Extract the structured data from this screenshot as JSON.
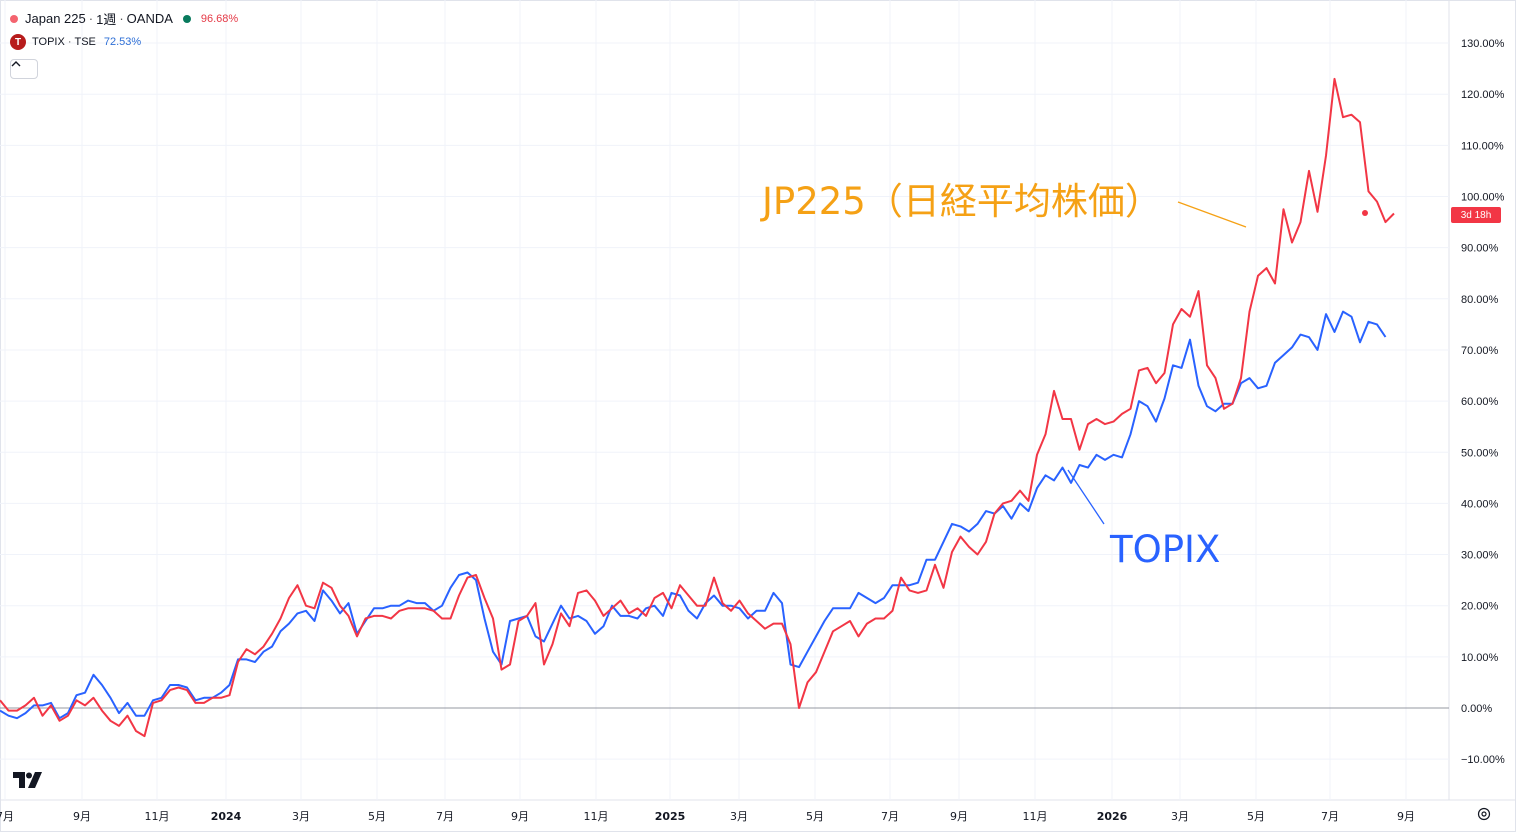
{
  "legend": {
    "main": {
      "title": "Japan 225",
      "interval": "1週",
      "source": "OANDA",
      "value": "96.68%"
    },
    "compare": {
      "symbol": "TOPIX",
      "exchange": "TSE",
      "value": "72.53%",
      "badge": "T"
    }
  },
  "separator": "·",
  "last_tag": "3d 18h",
  "annotations": {
    "jp225": "JP225（日経平均株価）",
    "topix": "TOPIX"
  },
  "icons": {
    "collapse": "chevron-up-icon",
    "logo": "tradingview-logo-icon",
    "settings": "gear-icon"
  },
  "colors": {
    "jp225": "#f23645",
    "topix": "#2962ff",
    "annotation_jp": "#f5a115"
  },
  "chart_data": {
    "type": "line",
    "y_unit": "%",
    "ylim": [
      -12,
      130
    ],
    "y_ticks": [
      130,
      120,
      110,
      100,
      90,
      80,
      70,
      60,
      50,
      40,
      30,
      20,
      10,
      0,
      -10
    ],
    "y_tick_labels": [
      "130.00%",
      "120.00%",
      "110.00%",
      "100.00%",
      "90.00%",
      "80.00%",
      "70.00%",
      "60.00%",
      "50.00%",
      "40.00%",
      "30.00%",
      "20.00%",
      "10.00%",
      "0.00%",
      "−10.00%"
    ],
    "x_labels": [
      "7月",
      "9月",
      "11月",
      "2024",
      "3月",
      "5月",
      "7月",
      "9月",
      "11月",
      "2025",
      "3月",
      "5月",
      "7月",
      "9月",
      "11月",
      "2026",
      "3月",
      "5月",
      "7月",
      "9月"
    ],
    "x_label_bold": [
      "2024",
      "2025",
      "2026"
    ],
    "grid": true,
    "series": [
      {
        "name": "Japan 225",
        "color": "#f23645",
        "values": [
          1.5,
          -0.5,
          -0.5,
          0.5,
          2.0,
          -1.5,
          0.5,
          -2.5,
          -1.5,
          1.5,
          0.5,
          2.0,
          -0.5,
          -2.5,
          -3.5,
          -1.5,
          -4.5,
          -5.5,
          1.0,
          1.5,
          3.5,
          4.0,
          3.5,
          1.0,
          1.0,
          2.0,
          2.0,
          2.5,
          9.0,
          11.5,
          10.5,
          12.0,
          14.5,
          17.5,
          21.5,
          24.0,
          20.0,
          19.5,
          24.5,
          23.5,
          20.0,
          18.0,
          14.0,
          17.5,
          18.0,
          18.0,
          17.5,
          19.0,
          19.5,
          19.5,
          19.5,
          19.0,
          17.5,
          17.5,
          22.0,
          25.5,
          26.0,
          21.5,
          17.5,
          7.5,
          8.5,
          17.0,
          18.0,
          20.5,
          8.5,
          12.5,
          18.5,
          16.0,
          22.5,
          23.0,
          21.0,
          18.0,
          19.5,
          21.0,
          18.5,
          19.5,
          18.0,
          21.5,
          22.5,
          19.5,
          24.0,
          22.0,
          20.0,
          20.0,
          25.5,
          20.5,
          19.0,
          21.0,
          18.5,
          17.0,
          15.5,
          16.5,
          16.5,
          12.5,
          0.0,
          5.0,
          7.0,
          11.0,
          15.0,
          16.0,
          17.0,
          14.0,
          16.5,
          17.5,
          17.5,
          19.0,
          25.5,
          23.0,
          22.5,
          23.0,
          28.0,
          23.5,
          30.5,
          33.5,
          31.5,
          30.0,
          32.5,
          38.0,
          40.0,
          40.5,
          42.5,
          40.5,
          49.5,
          53.5,
          62.0,
          56.5,
          56.5,
          50.5,
          55.5,
          56.5,
          55.5,
          56.0,
          57.5,
          58.5,
          66.0,
          66.5,
          63.5,
          65.5,
          75.0,
          78.0,
          76.5,
          81.5,
          67.0,
          64.5,
          58.5,
          59.5,
          64.5,
          77.5,
          84.5,
          86.0,
          83.0,
          97.5,
          91.0,
          95.0,
          105.0,
          97.0,
          108.0,
          123.0,
          115.5,
          116.0,
          114.5,
          101.0,
          99.0,
          95.0,
          96.68
        ]
      },
      {
        "name": "TOPIX",
        "color": "#2962ff",
        "values": [
          -0.5,
          -1.5,
          -2.0,
          -1.0,
          0.5,
          0.5,
          1.0,
          -2.0,
          -1.0,
          2.5,
          3.0,
          6.5,
          4.5,
          2.0,
          -1.0,
          1.0,
          -1.5,
          -1.5,
          1.5,
          2.0,
          4.5,
          4.5,
          4.0,
          1.5,
          2.0,
          2.0,
          3.0,
          4.5,
          9.5,
          9.5,
          9.0,
          11.0,
          12.0,
          15.0,
          16.5,
          18.5,
          19.0,
          17.0,
          23.0,
          21.0,
          18.5,
          20.5,
          14.5,
          17.0,
          19.5,
          19.5,
          20.0,
          20.0,
          21.0,
          20.5,
          20.5,
          19.0,
          20.0,
          23.5,
          26.0,
          26.5,
          25.0,
          17.5,
          11.0,
          8.5,
          17.0,
          17.5,
          18.0,
          14.0,
          13.0,
          16.5,
          20.0,
          17.5,
          18.0,
          17.0,
          14.5,
          16.0,
          20.0,
          18.0,
          18.0,
          17.5,
          19.5,
          20.0,
          18.0,
          22.5,
          22.0,
          19.0,
          17.5,
          20.5,
          22.0,
          20.0,
          20.0,
          19.5,
          17.5,
          19.0,
          19.0,
          22.5,
          20.5,
          8.5,
          8.0,
          11.0,
          14.0,
          17.0,
          19.5,
          19.5,
          19.5,
          22.5,
          21.5,
          20.5,
          21.5,
          24.0,
          24.0,
          24.0,
          24.5,
          29.0,
          29.0,
          32.5,
          36.0,
          35.5,
          34.5,
          36.0,
          38.5,
          38.0,
          39.5,
          37.0,
          40.0,
          38.5,
          43.0,
          45.5,
          44.5,
          47.0,
          44.0,
          47.5,
          47.0,
          49.5,
          48.5,
          49.5,
          49.0,
          53.5,
          60.0,
          59.0,
          56.0,
          60.5,
          67.0,
          66.5,
          72.0,
          63.0,
          59.0,
          58.0,
          59.5,
          59.5,
          63.5,
          64.5,
          62.5,
          63.0,
          67.5,
          69.0,
          70.5,
          73.0,
          72.5,
          70.0,
          77.0,
          73.5,
          77.5,
          76.5,
          71.5,
          75.5,
          75.0,
          72.53
        ]
      }
    ]
  }
}
